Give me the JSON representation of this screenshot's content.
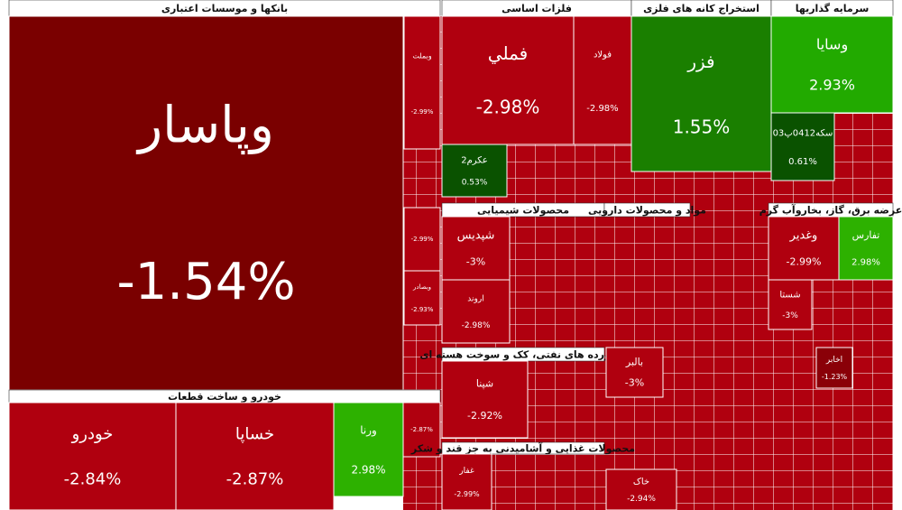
{
  "sectors": [
    {
      "title": "بانکها و موسسات اعتباری",
      "tiles": [
        {
          "name": "وپاسار",
          "change": "-1.54%",
          "color": "#7a0000"
        },
        {
          "name": "وبملت",
          "change": "-2.99%",
          "color": "#b0000f"
        },
        {
          "change": "-2.99%",
          "color": "#b0000f"
        },
        {
          "name": "وبصادر",
          "change": "-2.93%",
          "color": "#b0000f"
        }
      ]
    },
    {
      "title": "خودرو و ساخت قطعات",
      "tiles": [
        {
          "name": "خودرو",
          "change": "-2.84%",
          "color": "#b0000f"
        },
        {
          "name": "خساپا",
          "change": "-2.87%",
          "color": "#b0000f"
        },
        {
          "name": "ورنا",
          "change": "2.98%",
          "color": "#2db100"
        },
        {
          "change": "-2.87%",
          "color": "#b0000f"
        }
      ]
    },
    {
      "title": "فلزات اساسی",
      "tiles": [
        {
          "name": "فملي",
          "change": "-2.98%",
          "color": "#b0000f"
        },
        {
          "name": "فولاد",
          "change": "-2.98%",
          "color": "#b0000f"
        },
        {
          "name": "عکرم2",
          "change": "0.53%",
          "color": "#0a5200"
        }
      ]
    },
    {
      "title": "استخراج کانه های فلزی",
      "tiles": [
        {
          "name": "فزر",
          "change": "1.55%",
          "color": "#1a7f00"
        }
      ]
    },
    {
      "title": "سرمایه گذاریها",
      "tiles": [
        {
          "name": "وسایا",
          "change": "2.93%",
          "color": "#22aa00"
        },
        {
          "name": "سکه0412پ03",
          "change": "0.61%",
          "color": "#0a5200"
        }
      ]
    },
    {
      "title": "محصولات شیمیایی",
      "tiles": [
        {
          "name": "شپدیس",
          "change": "-3%",
          "color": "#b0000f"
        },
        {
          "name": "اروند",
          "change": "-2.98%",
          "color": "#b0000f"
        }
      ]
    },
    {
      "title": "فراورده های نفتی، کک و سوخت هسته ای",
      "tiles": [
        {
          "name": "شپنا",
          "change": "-2.92%",
          "color": "#b0000f"
        }
      ]
    },
    {
      "title": "مواد و محصولات دارویی",
      "tiles": [
        {
          "name": "بالبر",
          "change": "-3%",
          "color": "#b0000f"
        },
        {
          "name": "خاک",
          "change": "-2.94%",
          "color": "#b0000f"
        }
      ]
    },
    {
      "title": "محصولات غذایی و آشامیدنی به جز قند و شکر",
      "tiles": [
        {
          "name": "غفار",
          "change": "-2.99%",
          "color": "#b0000f"
        }
      ]
    },
    {
      "title": "عرضه برق، گاز، بخاروآب گرم",
      "tiles": [
        {
          "name": "وغدیر",
          "change": "-2.99%",
          "color": "#b0000f"
        },
        {
          "name": "تفارس",
          "change": "2.98%",
          "color": "#2db100"
        },
        {
          "name": "شستا",
          "change": "-3%",
          "color": "#b0000f"
        },
        {
          "name": "اخابر",
          "change": "-1.23%",
          "color": "#8a0008"
        }
      ]
    }
  ]
}
